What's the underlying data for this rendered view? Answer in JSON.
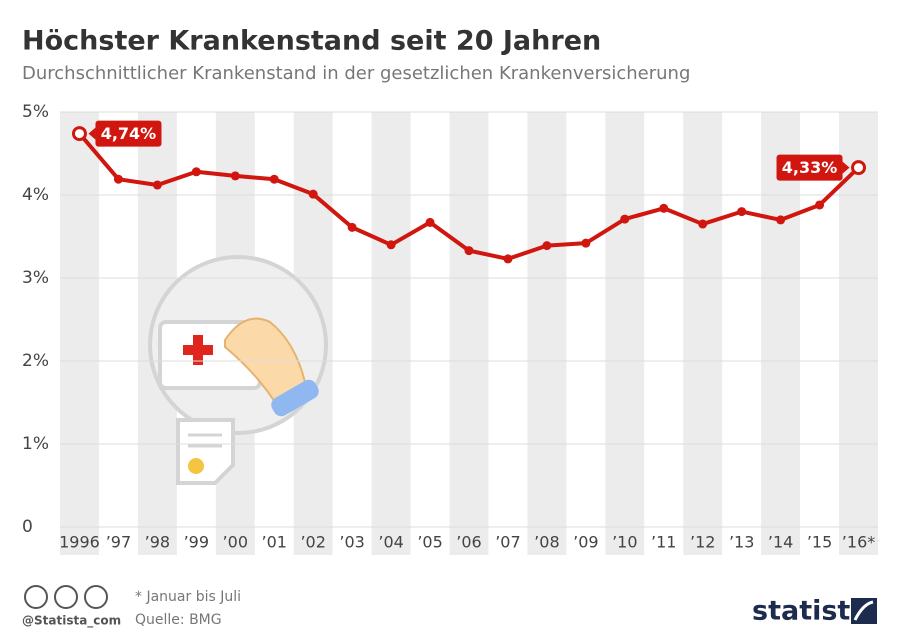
{
  "chart_data": {
    "type": "line",
    "title": "Höchster Krankenstand seit 20 Jahren",
    "subtitle": "Durchschnittlicher Krankenstand in der gesetzlichen Krankenversicherung",
    "categories": [
      "1996",
      "’97",
      "’98",
      "’99",
      "’00",
      "’01",
      "’02",
      "’03",
      "’04",
      "’05",
      "’06",
      "’07",
      "’08",
      "’09",
      "’10",
      "’11",
      "’12",
      "’13",
      "’14",
      "’15",
      "’16*"
    ],
    "series": [
      {
        "name": "Krankenstand",
        "color": "#d0160e",
        "values": [
          4.74,
          4.19,
          4.12,
          4.28,
          4.23,
          4.19,
          4.01,
          3.61,
          3.4,
          3.67,
          3.33,
          3.23,
          3.39,
          3.42,
          3.71,
          3.84,
          3.65,
          3.8,
          3.7,
          3.88,
          4.33
        ],
        "value_labels": [
          "4,74%",
          null,
          null,
          null,
          null,
          null,
          null,
          null,
          null,
          null,
          null,
          null,
          null,
          null,
          null,
          null,
          null,
          null,
          null,
          null,
          "4,33%"
        ]
      }
    ],
    "ylim": [
      0,
      5
    ],
    "yticks": [
      0,
      {
        "value": 1,
        "label": "1%"
      },
      {
        "value": 2,
        "label": "2%"
      },
      {
        "value": 3,
        "label": "3%"
      },
      {
        "value": 4,
        "label": "4%"
      },
      {
        "value": 5,
        "label": "5%"
      }
    ],
    "grid": true
  },
  "footer": {
    "note": "* Januar bis Juli",
    "source": "Quelle: BMG",
    "handle": "@Statista_com",
    "brand": "statista"
  }
}
